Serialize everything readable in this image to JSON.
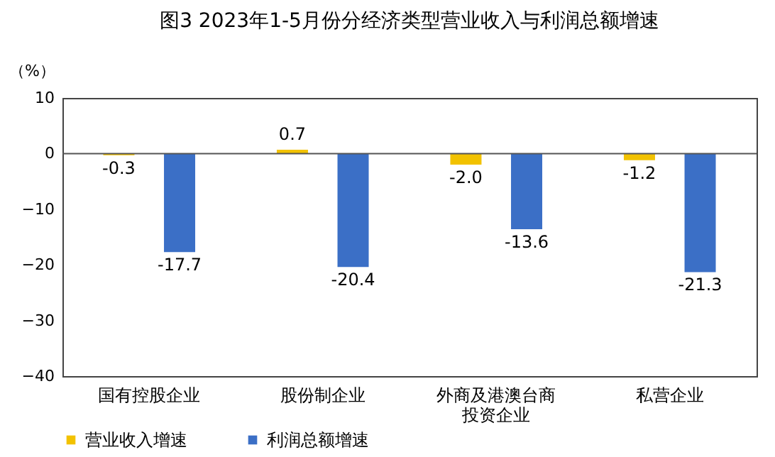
{
  "chart_data": {
    "type": "bar",
    "title": "图3  2023年1-5月份分经济类型营业收入与利润总额增速",
    "ylabel": "（%）",
    "categories": [
      "国有控股企业",
      "股份制企业",
      "外商及港澳台商投资企业",
      "私营企业"
    ],
    "series": [
      {
        "name": "营业收入增速",
        "color": "#f2c200",
        "values": [
          -0.3,
          0.7,
          -2.0,
          -1.2
        ],
        "value_labels": [
          "-0.3",
          "0.7",
          "-2.0",
          "-1.2"
        ]
      },
      {
        "name": "利润总额增速",
        "color": "#3b6fc6",
        "values": [
          -17.7,
          -20.4,
          -13.6,
          -21.3
        ],
        "value_labels": [
          "-17.7",
          "-20.4",
          "-13.6",
          "-21.3"
        ]
      }
    ],
    "ylim": [
      -40,
      10
    ],
    "yticks": [
      -40,
      -30,
      -20,
      -10,
      0,
      10
    ],
    "grid": false,
    "legend": "bottom",
    "ref_lines": [
      {
        "axis": "y",
        "value": 0,
        "color": "#555555"
      }
    ]
  }
}
